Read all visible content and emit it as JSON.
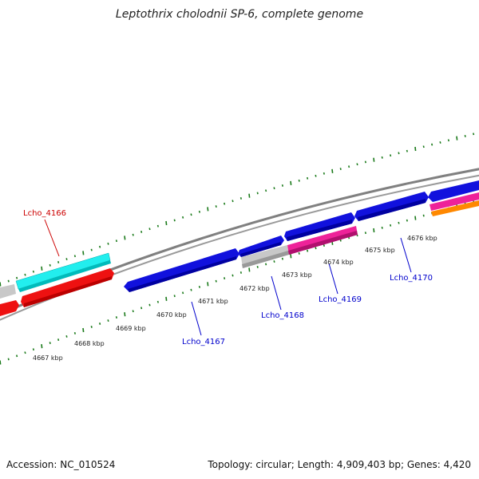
{
  "title": "Leptothrix cholodnii SP-6, complete genome",
  "footer": {
    "accession": "Accession: NC_010524",
    "summary": "Topology: circular; Length: 4,909,403 bp; Genes: 4,420"
  },
  "colors": {
    "backbone": "#8a8a8a",
    "tick": "#1a7a1a",
    "gene_red": "#ee1111",
    "gene_cyan": "#22eeee",
    "gene_blue": "#1111dd",
    "gene_gray": "#c8c8c8",
    "gene_pink": "#ee2299",
    "gene_orange": "#ff8800",
    "label_blue": "#0000cc",
    "label_red": "#cc0000"
  },
  "scale_labels": [
    {
      "text": "4667 kbp"
    },
    {
      "text": "4668 kbp"
    },
    {
      "text": "4669 kbp"
    },
    {
      "text": "4670 kbp"
    },
    {
      "text": "4671 kbp"
    },
    {
      "text": "4672 kbp"
    },
    {
      "text": "4673 kbp"
    },
    {
      "text": "4674 kbp"
    },
    {
      "text": "4675 kbp"
    },
    {
      "text": "4676 kbp"
    }
  ],
  "gene_labels": [
    {
      "text": "Lcho_4166",
      "color": "red"
    },
    {
      "text": "Lcho_4167",
      "color": "blue"
    },
    {
      "text": "Lcho_4168",
      "color": "blue"
    },
    {
      "text": "Lcho_4169",
      "color": "blue"
    },
    {
      "text": "Lcho_4170",
      "color": "blue"
    }
  ]
}
